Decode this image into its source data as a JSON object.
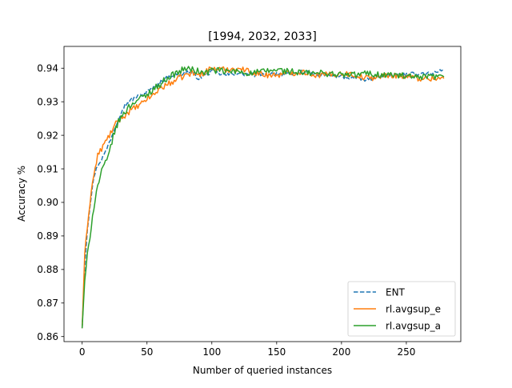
{
  "chart_data": {
    "type": "line",
    "title": "[1994, 2032, 2033]",
    "xlabel": "Number of queried instances",
    "ylabel": "Accuracy %",
    "xlim": [
      -14,
      292
    ],
    "ylim": [
      0.8585,
      0.9465
    ],
    "xticks": [
      0,
      50,
      100,
      150,
      200,
      250
    ],
    "xtick_labels": [
      "0",
      "50",
      "100",
      "150",
      "200",
      "250"
    ],
    "yticks": [
      0.86,
      0.87,
      0.88,
      0.89,
      0.9,
      0.91,
      0.92,
      0.93,
      0.94
    ],
    "ytick_labels": [
      "0.86",
      "0.87",
      "0.88",
      "0.89",
      "0.90",
      "0.91",
      "0.92",
      "0.93",
      "0.94"
    ],
    "grid": false,
    "legend_position": "lower-right",
    "x_range": [
      0,
      279
    ],
    "series": [
      {
        "name": "ENT",
        "color": "#1f77b4",
        "dash": "dashed",
        "anchors": [
          [
            0,
            0.8625
          ],
          [
            1,
            0.872
          ],
          [
            2,
            0.881
          ],
          [
            4,
            0.892
          ],
          [
            6,
            0.899
          ],
          [
            8,
            0.905
          ],
          [
            10,
            0.909
          ],
          [
            12,
            0.911
          ],
          [
            15,
            0.913
          ],
          [
            18,
            0.915
          ],
          [
            21,
            0.918
          ],
          [
            24,
            0.921
          ],
          [
            27,
            0.924
          ],
          [
            30,
            0.927
          ],
          [
            33,
            0.929
          ],
          [
            36,
            0.93
          ],
          [
            40,
            0.931
          ],
          [
            45,
            0.932
          ],
          [
            50,
            0.933
          ],
          [
            55,
            0.934
          ],
          [
            60,
            0.936
          ],
          [
            65,
            0.937
          ],
          [
            70,
            0.938
          ],
          [
            75,
            0.938
          ],
          [
            80,
            0.939
          ],
          [
            85,
            0.9385
          ],
          [
            90,
            0.937
          ],
          [
            95,
            0.938
          ],
          [
            100,
            0.939
          ],
          [
            110,
            0.938
          ],
          [
            120,
            0.9385
          ],
          [
            130,
            0.938
          ],
          [
            140,
            0.938
          ],
          [
            150,
            0.9385
          ],
          [
            160,
            0.938
          ],
          [
            170,
            0.939
          ],
          [
            180,
            0.938
          ],
          [
            190,
            0.938
          ],
          [
            200,
            0.9375
          ],
          [
            210,
            0.937
          ],
          [
            220,
            0.9365
          ],
          [
            230,
            0.938
          ],
          [
            240,
            0.938
          ],
          [
            250,
            0.938
          ],
          [
            260,
            0.9385
          ],
          [
            270,
            0.9385
          ],
          [
            279,
            0.9395
          ]
        ],
        "noise": 0.0006
      },
      {
        "name": "rl.avgsup_e",
        "color": "#ff7f0e",
        "dash": "solid",
        "anchors": [
          [
            0,
            0.8625
          ],
          [
            1,
            0.874
          ],
          [
            2,
            0.884
          ],
          [
            4,
            0.893
          ],
          [
            6,
            0.9
          ],
          [
            8,
            0.906
          ],
          [
            10,
            0.91
          ],
          [
            12,
            0.914
          ],
          [
            15,
            0.916
          ],
          [
            18,
            0.918
          ],
          [
            21,
            0.92
          ],
          [
            24,
            0.922
          ],
          [
            27,
            0.924
          ],
          [
            30,
            0.925
          ],
          [
            33,
            0.926
          ],
          [
            36,
            0.927
          ],
          [
            40,
            0.928
          ],
          [
            45,
            0.929
          ],
          [
            50,
            0.931
          ],
          [
            55,
            0.932
          ],
          [
            60,
            0.934
          ],
          [
            65,
            0.935
          ],
          [
            70,
            0.936
          ],
          [
            75,
            0.937
          ],
          [
            80,
            0.938
          ],
          [
            85,
            0.9385
          ],
          [
            90,
            0.938
          ],
          [
            95,
            0.939
          ],
          [
            100,
            0.94
          ],
          [
            110,
            0.9395
          ],
          [
            120,
            0.94
          ],
          [
            130,
            0.939
          ],
          [
            140,
            0.938
          ],
          [
            150,
            0.938
          ],
          [
            160,
            0.9385
          ],
          [
            170,
            0.939
          ],
          [
            180,
            0.938
          ],
          [
            190,
            0.938
          ],
          [
            200,
            0.9385
          ],
          [
            210,
            0.938
          ],
          [
            220,
            0.937
          ],
          [
            230,
            0.9375
          ],
          [
            240,
            0.938
          ],
          [
            250,
            0.9375
          ],
          [
            260,
            0.937
          ],
          [
            270,
            0.937
          ],
          [
            279,
            0.937
          ]
        ],
        "noise": 0.0009
      },
      {
        "name": "rl.avgsup_a",
        "color": "#2ca02c",
        "dash": "solid",
        "anchors": [
          [
            0,
            0.8625
          ],
          [
            1,
            0.87
          ],
          [
            2,
            0.876
          ],
          [
            4,
            0.884
          ],
          [
            6,
            0.89
          ],
          [
            8,
            0.896
          ],
          [
            10,
            0.901
          ],
          [
            12,
            0.905
          ],
          [
            15,
            0.909
          ],
          [
            18,
            0.912
          ],
          [
            20,
            0.913
          ],
          [
            22,
            0.917
          ],
          [
            25,
            0.921
          ],
          [
            28,
            0.924
          ],
          [
            31,
            0.926
          ],
          [
            35,
            0.928
          ],
          [
            40,
            0.93
          ],
          [
            45,
            0.931
          ],
          [
            50,
            0.932
          ],
          [
            55,
            0.934
          ],
          [
            60,
            0.935
          ],
          [
            65,
            0.937
          ],
          [
            70,
            0.938
          ],
          [
            75,
            0.939
          ],
          [
            80,
            0.94
          ],
          [
            85,
            0.9395
          ],
          [
            90,
            0.939
          ],
          [
            95,
            0.9385
          ],
          [
            100,
            0.9395
          ],
          [
            110,
            0.939
          ],
          [
            120,
            0.939
          ],
          [
            130,
            0.9385
          ],
          [
            140,
            0.939
          ],
          [
            150,
            0.9395
          ],
          [
            160,
            0.939
          ],
          [
            170,
            0.9385
          ],
          [
            180,
            0.9385
          ],
          [
            190,
            0.9385
          ],
          [
            200,
            0.938
          ],
          [
            210,
            0.938
          ],
          [
            220,
            0.9385
          ],
          [
            230,
            0.938
          ],
          [
            240,
            0.938
          ],
          [
            250,
            0.9375
          ],
          [
            260,
            0.937
          ],
          [
            270,
            0.9375
          ],
          [
            279,
            0.937
          ]
        ],
        "noise": 0.001
      }
    ]
  }
}
